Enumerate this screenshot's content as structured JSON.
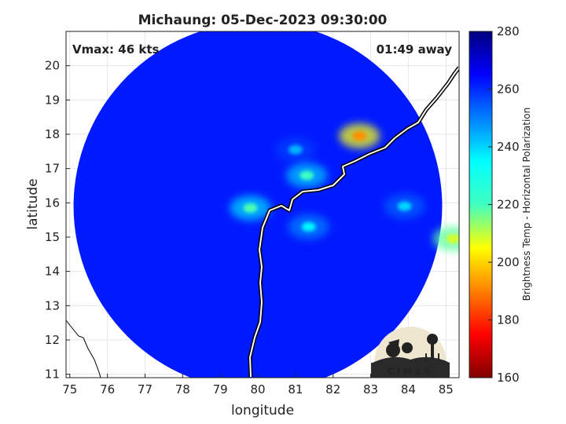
{
  "chart_data": {
    "type": "heatmap",
    "title": "Michaung: 05-Dec-2023 09:30:00",
    "xlabel": "longitude",
    "ylabel": "latitude",
    "xlim": [
      74.9,
      85.35
    ],
    "ylim": [
      10.9,
      21.0
    ],
    "xticks": [
      75,
      76,
      77,
      78,
      79,
      80,
      81,
      82,
      83,
      84,
      85
    ],
    "yticks": [
      11,
      12,
      13,
      14,
      15,
      16,
      17,
      18,
      19,
      20
    ],
    "grid": true,
    "annotations": {
      "top_left": "Vmax: 46 kts",
      "top_right": "01:49 away"
    },
    "swath": {
      "center": [
        80.0,
        15.9
      ],
      "radius_deg": 4.9
    },
    "colorbar": {
      "label": "Brightness Temp - Horizontal Polarization",
      "range": [
        160,
        280
      ],
      "ticks": [
        160,
        180,
        200,
        220,
        240,
        260,
        280
      ],
      "colormap": "jet",
      "colors": [
        "#800000",
        "#ff0000",
        "#ffff00",
        "#00ffff",
        "#0000ff",
        "#000080"
      ]
    },
    "background_tb": 262,
    "cold_features": [
      {
        "lon": 81.0,
        "lat": 17.55,
        "tb": 244
      },
      {
        "lon": 81.3,
        "lat": 16.8,
        "tb": 228
      },
      {
        "lon": 79.8,
        "lat": 15.85,
        "tb": 226
      },
      {
        "lon": 82.7,
        "lat": 17.95,
        "tb": 192
      },
      {
        "lon": 85.2,
        "lat": 14.95,
        "tb": 210
      },
      {
        "lon": 81.35,
        "lat": 15.3,
        "tb": 236
      },
      {
        "lon": 83.9,
        "lat": 15.9,
        "tb": 240
      }
    ],
    "logo": "CIMSS"
  },
  "icons": {
    "logo": "cimss-logo"
  }
}
